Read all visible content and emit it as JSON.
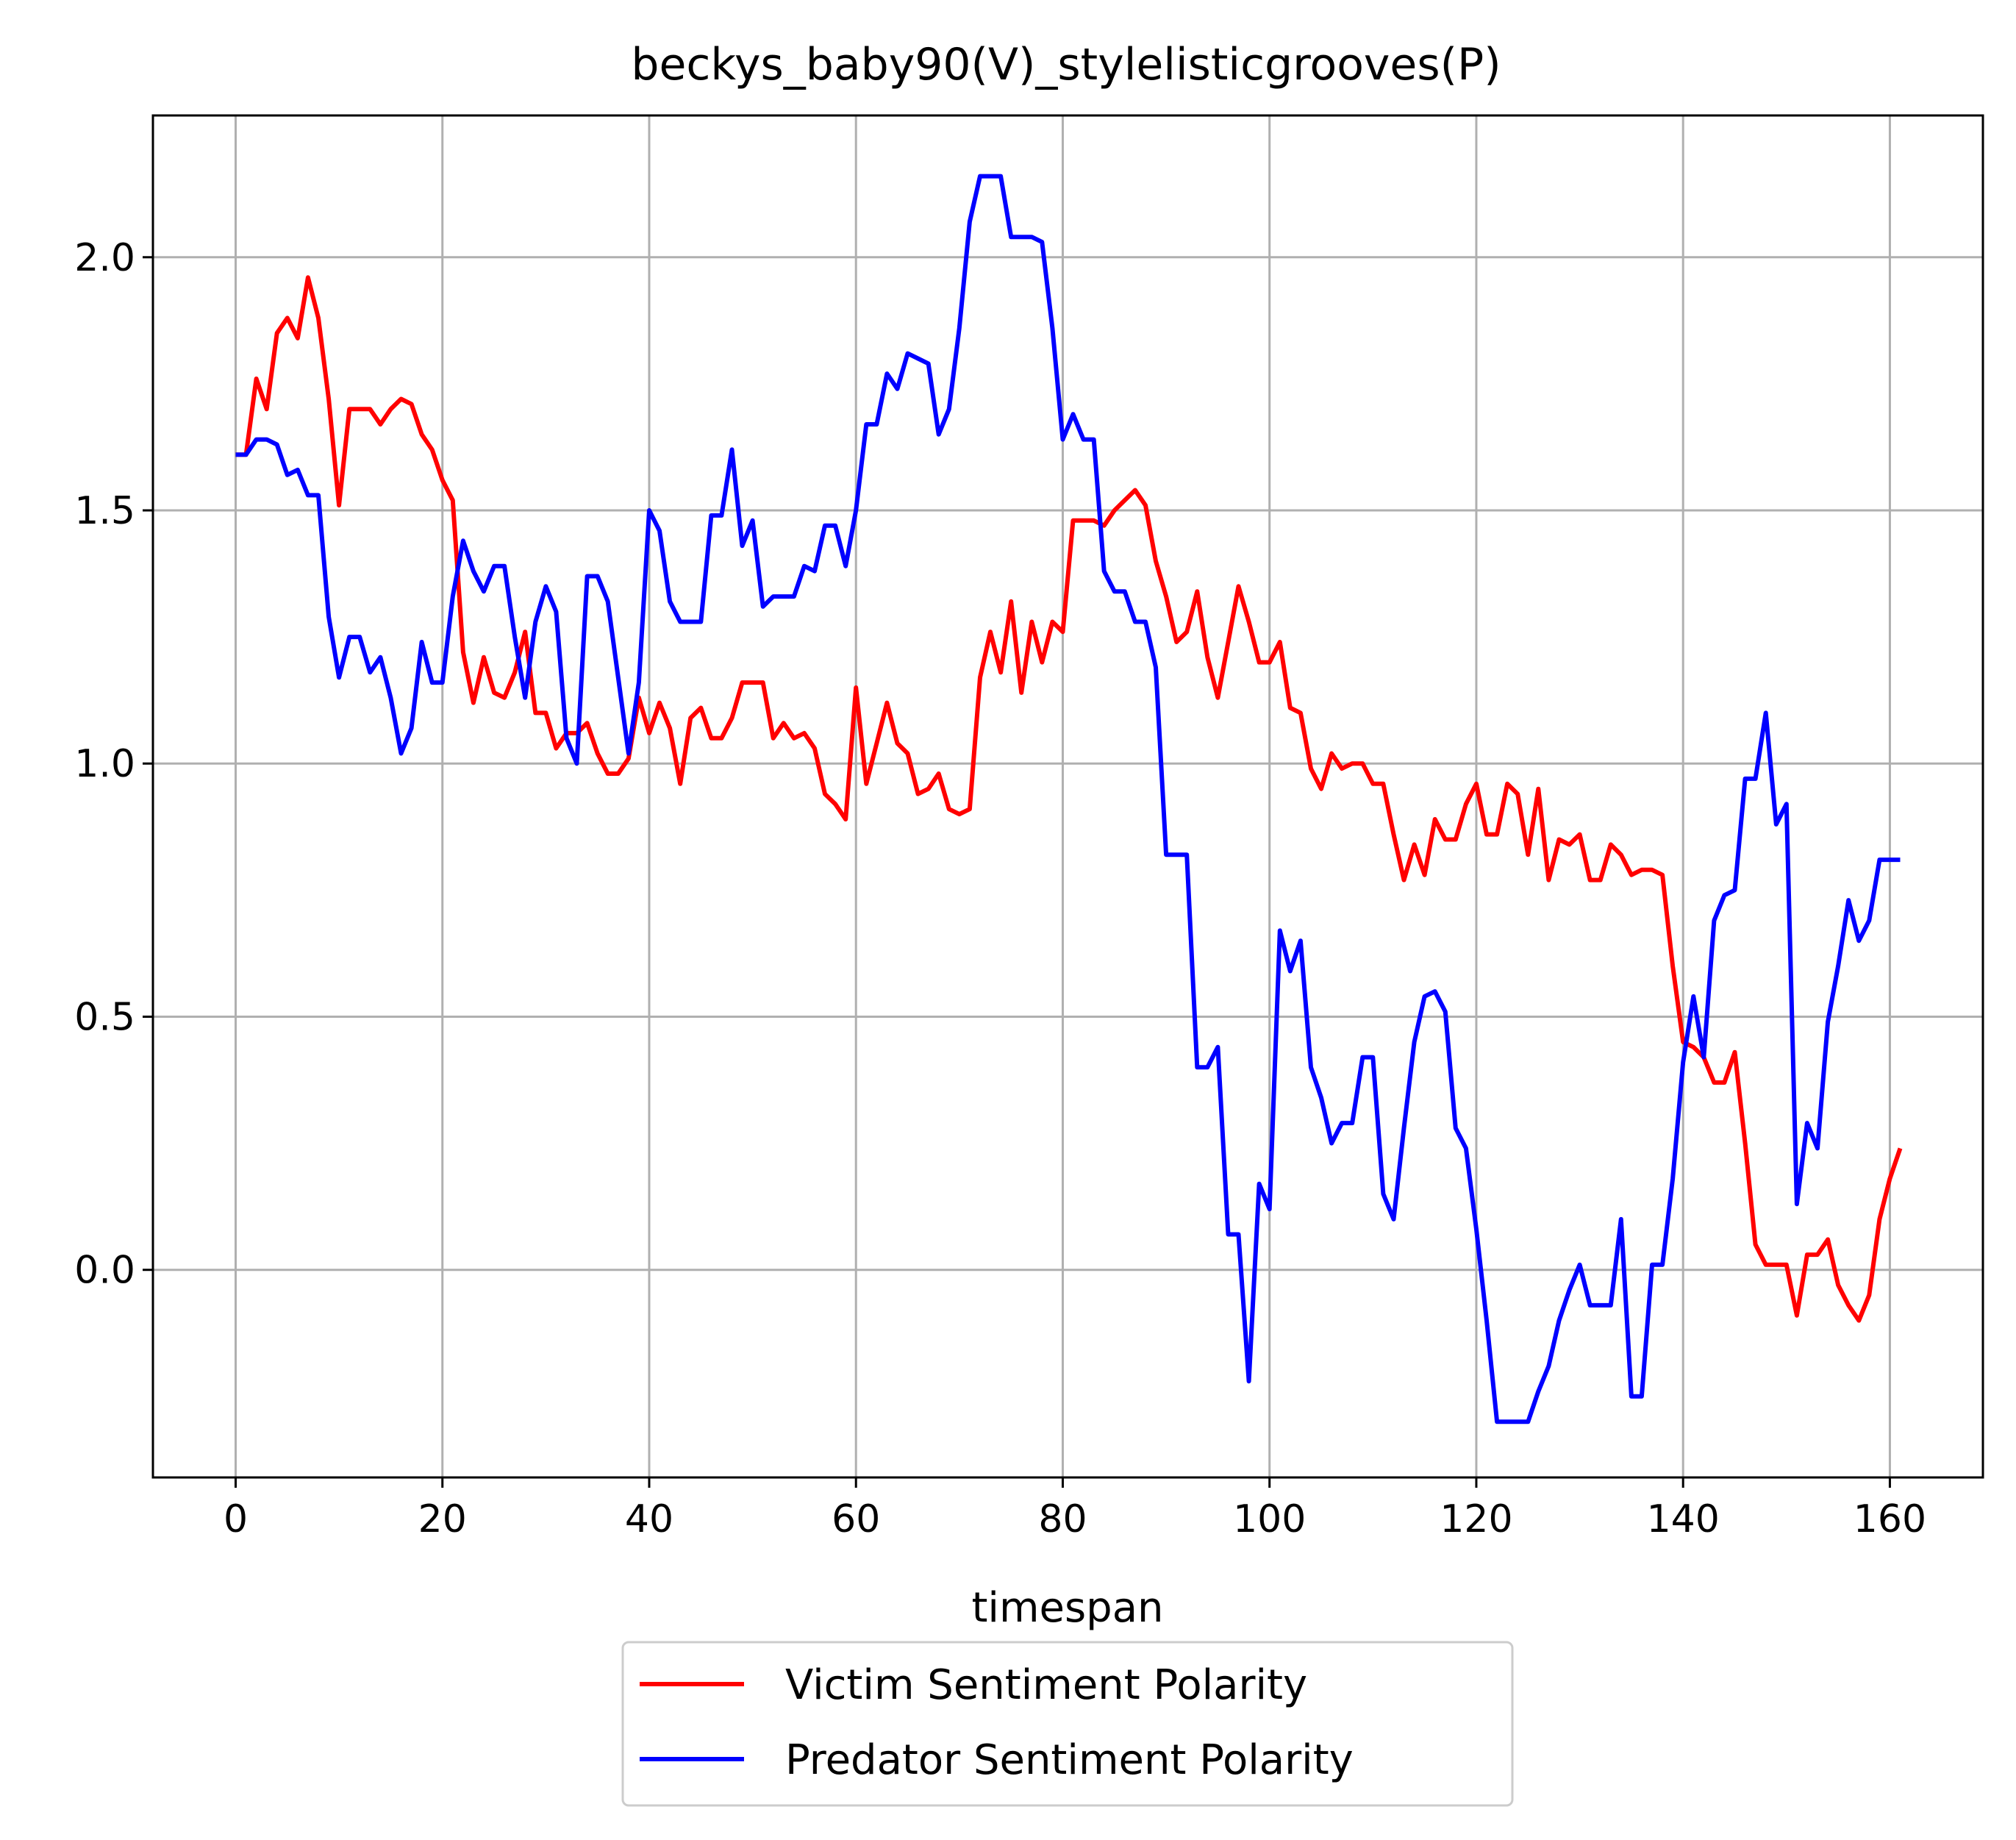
{
  "chart_data": {
    "type": "line",
    "title": "beckys_baby90(V)_stylelisticgrooves(P)",
    "xlabel": "timespan",
    "ylabel": "",
    "xlim": [
      -8,
      169
    ],
    "ylim": [
      -0.41,
      2.28
    ],
    "xticks": [
      0,
      20,
      40,
      60,
      80,
      100,
      120,
      140,
      160
    ],
    "yticks": [
      0.0,
      0.5,
      1.0,
      1.5,
      2.0
    ],
    "xtick_labels": [
      "0",
      "20",
      "40",
      "60",
      "80",
      "100",
      "120",
      "140",
      "160"
    ],
    "ytick_labels": [
      "0.0",
      "0.5",
      "1.0",
      "1.5",
      "2.0"
    ],
    "grid": true,
    "legend_position": "bottom-center (outside, below axis)",
    "legend": [
      "Victim Sentiment Polarity",
      "Predator Sentiment Polarity"
    ],
    "series": [
      {
        "name": "Victim Sentiment Polarity",
        "color": "#ff0000",
        "values": [
          1.61,
          1.61,
          1.76,
          1.7,
          1.85,
          1.88,
          1.84,
          1.96,
          1.88,
          1.72,
          1.51,
          1.7,
          1.7,
          1.7,
          1.67,
          1.7,
          1.72,
          1.71,
          1.65,
          1.62,
          1.56,
          1.52,
          1.22,
          1.12,
          1.21,
          1.14,
          1.13,
          1.18,
          1.26,
          1.1,
          1.1,
          1.03,
          1.06,
          1.06,
          1.08,
          1.02,
          0.98,
          0.98,
          1.01,
          1.13,
          1.06,
          1.12,
          1.07,
          0.96,
          1.09,
          1.11,
          1.05,
          1.05,
          1.09,
          1.16,
          1.16,
          1.16,
          1.05,
          1.08,
          1.05,
          1.06,
          1.03,
          0.94,
          0.92,
          0.89,
          1.15,
          0.96,
          1.04,
          1.12,
          1.04,
          1.02,
          0.94,
          0.95,
          0.98,
          0.91,
          0.9,
          0.91,
          1.17,
          1.26,
          1.18,
          1.32,
          1.14,
          1.28,
          1.2,
          1.28,
          1.26,
          1.48,
          1.48,
          1.48,
          1.47,
          1.5,
          1.52,
          1.54,
          1.51,
          1.4,
          1.33,
          1.24,
          1.26,
          1.34,
          1.21,
          1.13,
          1.24,
          1.35,
          1.28,
          1.2,
          1.2,
          1.24,
          1.11,
          1.1,
          0.99,
          0.95,
          1.02,
          0.99,
          1.0,
          1.0,
          0.96,
          0.96,
          0.86,
          0.77,
          0.84,
          0.78,
          0.89,
          0.85,
          0.85,
          0.92,
          0.96,
          0.86,
          0.86,
          0.96,
          0.94,
          0.82,
          0.95,
          0.77,
          0.85,
          0.84,
          0.86,
          0.77,
          0.77,
          0.84,
          0.82,
          0.78,
          0.79,
          0.79,
          0.78,
          0.6,
          0.45,
          0.44,
          0.42,
          0.37,
          0.37,
          0.43,
          0.25,
          0.05,
          0.01,
          0.01,
          0.01,
          -0.09,
          0.03,
          0.03,
          0.06,
          -0.03,
          -0.07,
          -0.1,
          -0.05,
          0.1,
          0.18,
          0.24
        ]
      },
      {
        "name": "Predator Sentiment Polarity",
        "color": "#0000ff",
        "values": [
          1.61,
          1.61,
          1.64,
          1.64,
          1.63,
          1.57,
          1.58,
          1.53,
          1.53,
          1.29,
          1.17,
          1.25,
          1.25,
          1.18,
          1.21,
          1.13,
          1.02,
          1.07,
          1.24,
          1.16,
          1.16,
          1.33,
          1.44,
          1.38,
          1.34,
          1.39,
          1.39,
          1.25,
          1.13,
          1.28,
          1.35,
          1.3,
          1.05,
          1.0,
          1.37,
          1.37,
          1.32,
          1.17,
          1.02,
          1.16,
          1.5,
          1.46,
          1.32,
          1.28,
          1.28,
          1.28,
          1.49,
          1.49,
          1.62,
          1.43,
          1.48,
          1.31,
          1.33,
          1.33,
          1.33,
          1.39,
          1.38,
          1.47,
          1.47,
          1.39,
          1.5,
          1.67,
          1.67,
          1.77,
          1.74,
          1.81,
          1.8,
          1.79,
          1.65,
          1.7,
          1.86,
          2.07,
          2.16,
          2.16,
          2.16,
          2.04,
          2.04,
          2.04,
          2.03,
          1.86,
          1.64,
          1.69,
          1.64,
          1.64,
          1.38,
          1.34,
          1.34,
          1.28,
          1.28,
          1.19,
          0.82,
          0.82,
          0.82,
          0.4,
          0.4,
          0.44,
          0.07,
          0.07,
          -0.22,
          0.17,
          0.12,
          0.67,
          0.59,
          0.65,
          0.4,
          0.34,
          0.25,
          0.29,
          0.29,
          0.42,
          0.42,
          0.15,
          0.1,
          0.28,
          0.45,
          0.54,
          0.55,
          0.51,
          0.28,
          0.24,
          0.08,
          -0.1,
          -0.3,
          -0.3,
          -0.3,
          -0.3,
          -0.24,
          -0.19,
          -0.1,
          -0.04,
          0.01,
          -0.07,
          -0.07,
          -0.07,
          0.1,
          -0.25,
          -0.25,
          0.01,
          0.01,
          0.18,
          0.41,
          0.54,
          0.42,
          0.69,
          0.74,
          0.75,
          0.97,
          0.97,
          1.1,
          0.88,
          0.92,
          0.13,
          0.29,
          0.24,
          0.49,
          0.6,
          0.73,
          0.65,
          0.69,
          0.81,
          0.81,
          0.81
        ]
      }
    ]
  }
}
